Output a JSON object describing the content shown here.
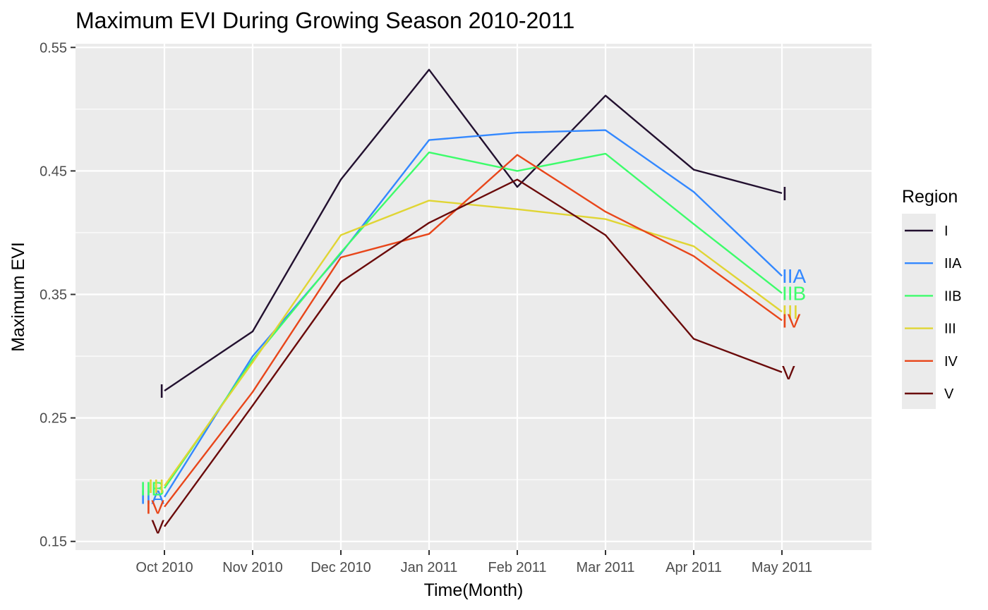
{
  "chart_data": {
    "type": "line",
    "title": "Maximum EVI During Growing Season 2010-2011",
    "xlabel": "Time(Month)",
    "ylabel": "Maximum EVI",
    "categories": [
      "Oct 2010",
      "Nov 2010",
      "Dec 2010",
      "Jan 2011",
      "Feb 2011",
      "Mar 2011",
      "Apr 2011",
      "May 2011"
    ],
    "ylim": [
      0.143,
      0.553
    ],
    "yticks": [
      0.15,
      0.25,
      0.35,
      0.45,
      0.55
    ],
    "ytick_labels": [
      "0.15",
      "0.25",
      "0.35",
      "0.45",
      "0.55"
    ],
    "grid": true,
    "legend": {
      "title": "Region",
      "position": "right"
    },
    "series": [
      {
        "name": "I",
        "color": "#22102f",
        "values": [
          0.272,
          0.32,
          0.443,
          0.532,
          0.437,
          0.511,
          0.451,
          0.432
        ]
      },
      {
        "name": "IIA",
        "color": "#3388ff",
        "values": [
          0.186,
          0.3,
          0.383,
          0.475,
          0.481,
          0.483,
          0.433,
          0.365
        ]
      },
      {
        "name": "IIB",
        "color": "#3dfc6b",
        "values": [
          0.193,
          0.297,
          0.384,
          0.465,
          0.45,
          0.464,
          0.407,
          0.351
        ]
      },
      {
        "name": "III",
        "color": "#e0d534",
        "values": [
          0.195,
          0.295,
          0.398,
          0.426,
          0.419,
          0.411,
          0.389,
          0.336
        ]
      },
      {
        "name": "IV",
        "color": "#e8461a",
        "values": [
          0.178,
          0.271,
          0.38,
          0.399,
          0.463,
          0.417,
          0.381,
          0.329
        ]
      },
      {
        "name": "V",
        "color": "#6a0a0a",
        "values": [
          0.162,
          0.26,
          0.36,
          0.408,
          0.443,
          0.398,
          0.314,
          0.287
        ]
      }
    ]
  }
}
